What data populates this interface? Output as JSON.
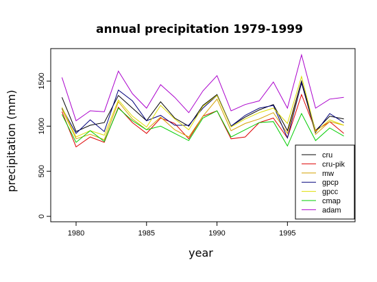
{
  "chart_data": {
    "type": "line",
    "title": "annual precipitation 1979-1999",
    "xlabel": "year",
    "ylabel": "precipitation (mm)",
    "xlim": [
      1978.2,
      1999.8
    ],
    "ylim": [
      -60,
      1860
    ],
    "xticks": [
      1980,
      1985,
      1990,
      1995
    ],
    "yticks": [
      0,
      500,
      1000,
      1500
    ],
    "legend_position": "bottom-right",
    "grid": false,
    "x": [
      1979,
      1980,
      1981,
      1982,
      1983,
      1984,
      1985,
      1986,
      1987,
      1988,
      1989,
      1990,
      1991,
      1992,
      1993,
      1994,
      1995,
      1996,
      1997,
      1998,
      1999
    ],
    "series": [
      {
        "name": "cru",
        "color": "#000000",
        "values": [
          1320,
          940,
          1010,
          1040,
          1340,
          1200,
          1060,
          1270,
          1090,
          1000,
          1230,
          1350,
          1000,
          1100,
          1180,
          1240,
          950,
          1500,
          950,
          1110,
          1080
        ]
      },
      {
        "name": "cru-pik",
        "color": "#dd0000",
        "values": [
          1160,
          770,
          880,
          820,
          1210,
          1040,
          920,
          1090,
          1030,
          860,
          1110,
          1170,
          860,
          880,
          1040,
          1090,
          870,
          1350,
          950,
          1050,
          920
        ]
      },
      {
        "name": "mw",
        "color": "#d4a000",
        "values": [
          1190,
          860,
          910,
          850,
          1270,
          1080,
          960,
          1100,
          960,
          880,
          1110,
          1300,
          950,
          1030,
          1080,
          1150,
          920,
          1480,
          910,
          1050,
          1010
        ]
      },
      {
        "name": "gpcp",
        "color": "#00007a",
        "values": [
          1200,
          920,
          1070,
          940,
          1400,
          1280,
          1060,
          1120,
          1010,
          1010,
          1200,
          1340,
          1000,
          1120,
          1200,
          1230,
          870,
          1480,
          930,
          1140,
          1040
        ]
      },
      {
        "name": "gpcc",
        "color": "#dddd00",
        "values": [
          1210,
          880,
          950,
          900,
          1290,
          1110,
          990,
          1230,
          1080,
          960,
          1220,
          1340,
          990,
          1080,
          1150,
          1200,
          1030,
          1550,
          940,
          1070,
          1010
        ]
      },
      {
        "name": "cmap",
        "color": "#00cc00",
        "values": [
          1130,
          820,
          950,
          830,
          1200,
          1060,
          960,
          1000,
          920,
          840,
          1090,
          1170,
          880,
          960,
          1040,
          1050,
          780,
          1140,
          840,
          980,
          890
        ]
      },
      {
        "name": "adam",
        "color": "#aa00cc",
        "values": [
          1540,
          1060,
          1170,
          1160,
          1610,
          1360,
          1200,
          1460,
          1320,
          1150,
          1390,
          1560,
          1170,
          1240,
          1280,
          1490,
          1200,
          1790,
          1200,
          1300,
          1320
        ]
      }
    ]
  }
}
